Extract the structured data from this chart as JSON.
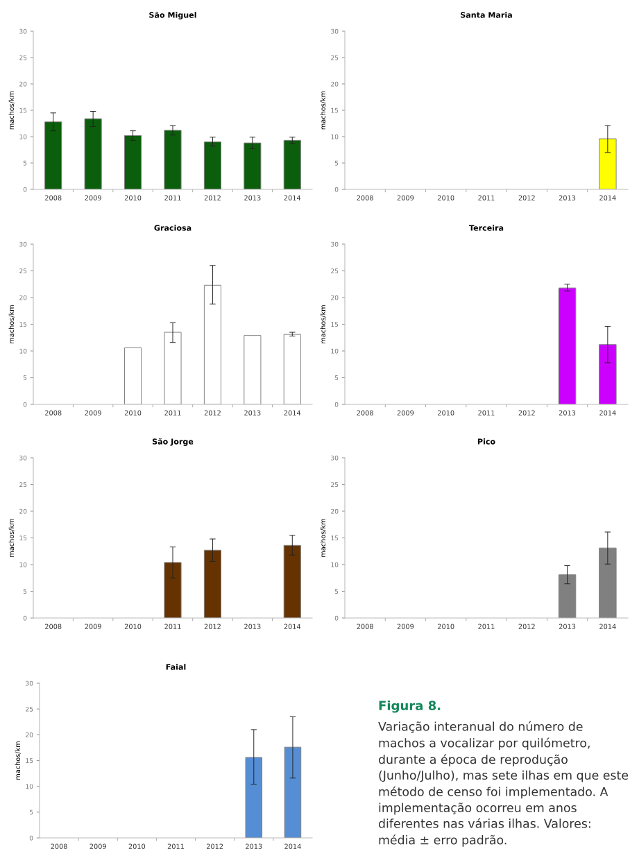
{
  "chart_data": [
    {
      "type": "bar",
      "title": "São Miguel",
      "ylabel": "machos/km",
      "categories": [
        "2008",
        "2009",
        "2010",
        "2011",
        "2012",
        "2013",
        "2014"
      ],
      "ylim": [
        0,
        30
      ],
      "yticks": [
        0,
        5,
        10,
        15,
        20,
        25,
        30
      ],
      "color": "#0b5e0b",
      "values": [
        12.8,
        13.4,
        10.2,
        11.2,
        9.0,
        8.8,
        9.3
      ],
      "errors": [
        [
          11.1,
          14.5
        ],
        [
          11.9,
          14.8
        ],
        [
          9.3,
          11.1
        ],
        [
          10.3,
          12.1
        ],
        [
          8.2,
          9.9
        ],
        [
          7.7,
          9.9
        ],
        [
          8.7,
          9.9
        ]
      ]
    },
    {
      "type": "bar",
      "title": "Santa Maria",
      "ylabel": "machos/km",
      "categories": [
        "2008",
        "2009",
        "2010",
        "2011",
        "2012",
        "2013",
        "2014"
      ],
      "ylim": [
        0,
        30
      ],
      "yticks": [
        0,
        5,
        10,
        15,
        20,
        25,
        30
      ],
      "color": "#ffff00",
      "values": [
        null,
        null,
        null,
        null,
        null,
        null,
        9.6
      ],
      "errors": [
        null,
        null,
        null,
        null,
        null,
        null,
        [
          7.0,
          12.1
        ]
      ]
    },
    {
      "type": "bar",
      "title": "Graciosa",
      "ylabel": "machos/km",
      "categories": [
        "2008",
        "2009",
        "2010",
        "2011",
        "2012",
        "2013",
        "2014"
      ],
      "ylim": [
        0,
        30
      ],
      "yticks": [
        0,
        5,
        10,
        15,
        20,
        25,
        30
      ],
      "color": "#ffffff",
      "values": [
        null,
        null,
        10.6,
        13.5,
        22.3,
        12.9,
        13.1
      ],
      "errors": [
        null,
        null,
        null,
        [
          11.6,
          15.3
        ],
        [
          18.8,
          26.0
        ],
        null,
        [
          12.8,
          13.5
        ]
      ]
    },
    {
      "type": "bar",
      "title": "Terceira",
      "ylabel": "machos/km",
      "categories": [
        "2008",
        "2009",
        "2010",
        "2011",
        "2012",
        "2013",
        "2014"
      ],
      "ylim": [
        0,
        30
      ],
      "yticks": [
        0,
        5,
        10,
        15,
        20,
        25,
        30
      ],
      "color": "#cc00ff",
      "values": [
        null,
        null,
        null,
        null,
        null,
        21.8,
        11.2
      ],
      "errors": [
        null,
        null,
        null,
        null,
        null,
        [
          21.2,
          22.5
        ],
        [
          7.8,
          14.6
        ]
      ]
    },
    {
      "type": "bar",
      "title": "São Jorge",
      "ylabel": "machos/km",
      "categories": [
        "2008",
        "2009",
        "2010",
        "2011",
        "2012",
        "2013",
        "2014"
      ],
      "ylim": [
        0,
        30
      ],
      "yticks": [
        0,
        5,
        10,
        15,
        20,
        25,
        30
      ],
      "color": "#663300",
      "values": [
        null,
        null,
        null,
        10.4,
        12.7,
        null,
        13.6
      ],
      "errors": [
        null,
        null,
        null,
        [
          7.5,
          13.3
        ],
        [
          10.6,
          14.8
        ],
        null,
        [
          11.8,
          15.5
        ]
      ]
    },
    {
      "type": "bar",
      "title": "Pico",
      "ylabel": "machos/km",
      "categories": [
        "2008",
        "2009",
        "2010",
        "2011",
        "2012",
        "2013",
        "2014"
      ],
      "ylim": [
        0,
        30
      ],
      "yticks": [
        0,
        5,
        10,
        15,
        20,
        25,
        30
      ],
      "color": "#808080",
      "values": [
        null,
        null,
        null,
        null,
        null,
        8.1,
        13.1
      ],
      "errors": [
        null,
        null,
        null,
        null,
        null,
        [
          6.4,
          9.8
        ],
        [
          10.1,
          16.1
        ]
      ]
    },
    {
      "type": "bar",
      "title": "Faial",
      "ylabel": "machos/km",
      "categories": [
        "2008",
        "2009",
        "2010",
        "2011",
        "2012",
        "2013",
        "2014"
      ],
      "ylim": [
        0,
        30
      ],
      "yticks": [
        0,
        5,
        10,
        15,
        20,
        25,
        30
      ],
      "color": "#558ed5",
      "values": [
        null,
        null,
        null,
        null,
        null,
        15.6,
        17.6
      ],
      "errors": [
        null,
        null,
        null,
        null,
        null,
        [
          10.4,
          21.0
        ],
        [
          11.6,
          23.5
        ]
      ],
      "annotations": [
        "Figura 8.",
        "Variação interanual do número de machos a vocalizar por quilómetro, durante a época de reprodução (Junho/Julho), mas sete ilhas em que este método de censo foi implementado. A implementação ocorreu em anos diferentes nas várias ilhas. Valores: média ± erro padrão."
      ]
    }
  ]
}
